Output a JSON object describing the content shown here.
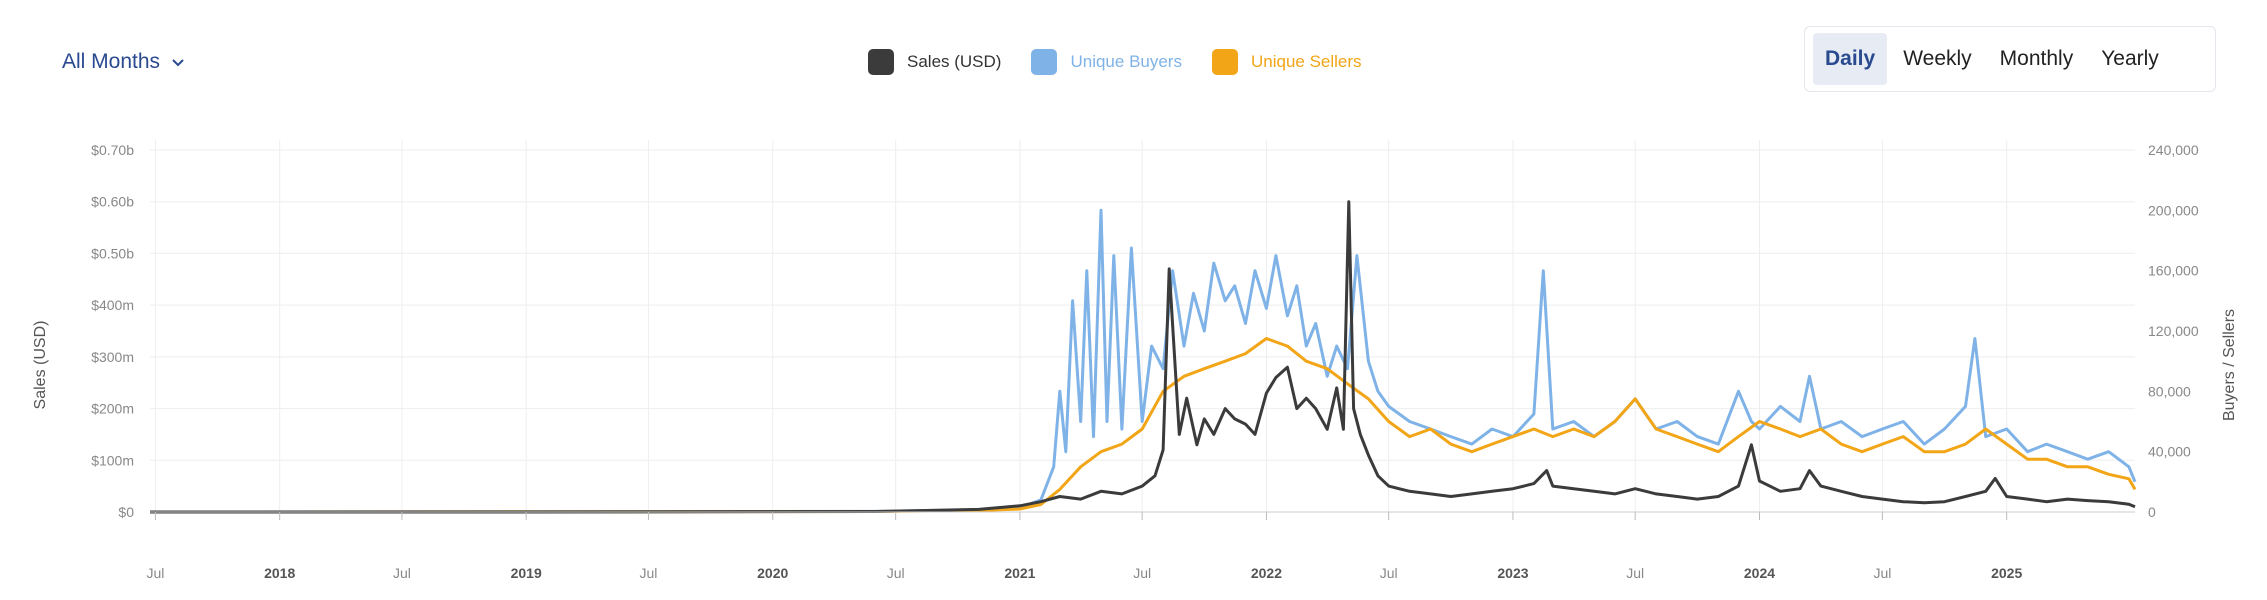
{
  "controls": {
    "months_label": "All Months",
    "periods": [
      {
        "label": "Daily",
        "active": true
      },
      {
        "label": "Weekly",
        "active": false
      },
      {
        "label": "Monthly",
        "active": false
      },
      {
        "label": "Yearly",
        "active": false
      }
    ]
  },
  "colors": {
    "sales": "#3b3b3b",
    "buyers": "#7fb3e8",
    "sellers": "#f2a516",
    "grid": "#eeeeee",
    "tick": "#888888"
  },
  "chart_data": {
    "type": "line",
    "legend_position": "top-center",
    "grid": true,
    "xlabel": "",
    "ylabel_left": "Sales (USD)",
    "ylabel_right": "Buyers / Sellers",
    "x_range": [
      "2017-06-23",
      "2025-07-10"
    ],
    "ylim_left": [
      0,
      700000000
    ],
    "ylim_right": [
      0,
      240000
    ],
    "left_ticks": [
      {
        "value": 0,
        "label": "$0"
      },
      {
        "value": 100000000,
        "label": "$100m"
      },
      {
        "value": 200000000,
        "label": "$200m"
      },
      {
        "value": 300000000,
        "label": "$300m"
      },
      {
        "value": 400000000,
        "label": "$400m"
      },
      {
        "value": 500000000,
        "label": "$0.50b"
      },
      {
        "value": 600000000,
        "label": "$0.60b"
      },
      {
        "value": 700000000,
        "label": "$0.70b"
      }
    ],
    "right_ticks": [
      {
        "value": 0,
        "label": "0"
      },
      {
        "value": 40000,
        "label": "40,000"
      },
      {
        "value": 80000,
        "label": "80,000"
      },
      {
        "value": 120000,
        "label": "120,000"
      },
      {
        "value": 160000,
        "label": "160,000"
      },
      {
        "value": 200000,
        "label": "200,000"
      },
      {
        "value": 240000,
        "label": "240,000"
      }
    ],
    "x_ticks": [
      {
        "date": "2017-07-01",
        "label": "Jul",
        "bold": false
      },
      {
        "date": "2018-01-01",
        "label": "2018",
        "bold": true
      },
      {
        "date": "2018-07-01",
        "label": "Jul",
        "bold": false
      },
      {
        "date": "2019-01-01",
        "label": "2019",
        "bold": true
      },
      {
        "date": "2019-07-01",
        "label": "Jul",
        "bold": false
      },
      {
        "date": "2020-01-01",
        "label": "2020",
        "bold": true
      },
      {
        "date": "2020-07-01",
        "label": "Jul",
        "bold": false
      },
      {
        "date": "2021-01-01",
        "label": "2021",
        "bold": true
      },
      {
        "date": "2021-07-01",
        "label": "Jul",
        "bold": false
      },
      {
        "date": "2022-01-01",
        "label": "2022",
        "bold": true
      },
      {
        "date": "2022-07-01",
        "label": "Jul",
        "bold": false
      },
      {
        "date": "2023-01-01",
        "label": "2023",
        "bold": true
      },
      {
        "date": "2023-07-01",
        "label": "Jul",
        "bold": false
      },
      {
        "date": "2024-01-01",
        "label": "2024",
        "bold": true
      },
      {
        "date": "2024-07-01",
        "label": "Jul",
        "bold": false
      },
      {
        "date": "2025-01-01",
        "label": "2025",
        "bold": true
      }
    ],
    "series": [
      {
        "name": "Unique Buyers",
        "key": "buyers",
        "axis": "right",
        "x": [
          "2017-06-23",
          "2019-01-01",
          "2020-06-01",
          "2020-11-01",
          "2021-01-01",
          "2021-02-01",
          "2021-02-20",
          "2021-03-01",
          "2021-03-10",
          "2021-03-20",
          "2021-04-01",
          "2021-04-10",
          "2021-04-20",
          "2021-05-01",
          "2021-05-10",
          "2021-05-20",
          "2021-06-01",
          "2021-06-15",
          "2021-07-01",
          "2021-07-15",
          "2021-08-01",
          "2021-08-15",
          "2021-09-01",
          "2021-09-15",
          "2021-10-01",
          "2021-10-15",
          "2021-11-01",
          "2021-11-15",
          "2021-12-01",
          "2021-12-15",
          "2022-01-01",
          "2022-01-15",
          "2022-02-01",
          "2022-02-15",
          "2022-03-01",
          "2022-03-15",
          "2022-04-01",
          "2022-04-15",
          "2022-05-01",
          "2022-05-15",
          "2022-06-01",
          "2022-06-15",
          "2022-07-01",
          "2022-08-01",
          "2022-09-01",
          "2022-10-01",
          "2022-11-01",
          "2022-12-01",
          "2023-01-01",
          "2023-02-01",
          "2023-02-15",
          "2023-03-01",
          "2023-04-01",
          "2023-05-01",
          "2023-06-01",
          "2023-07-01",
          "2023-08-01",
          "2023-09-01",
          "2023-10-01",
          "2023-11-01",
          "2023-12-01",
          "2023-12-20",
          "2024-01-01",
          "2024-02-01",
          "2024-03-01",
          "2024-03-15",
          "2024-04-01",
          "2024-05-01",
          "2024-06-01",
          "2024-07-01",
          "2024-08-01",
          "2024-09-01",
          "2024-10-01",
          "2024-11-01",
          "2024-11-15",
          "2024-12-01",
          "2025-01-01",
          "2025-02-01",
          "2025-03-01",
          "2025-04-01",
          "2025-05-01",
          "2025-06-01",
          "2025-07-01",
          "2025-07-10"
        ],
        "values": [
          0,
          100,
          400,
          1500,
          3000,
          8000,
          30000,
          80000,
          40000,
          140000,
          60000,
          160000,
          50000,
          200000,
          60000,
          170000,
          55000,
          175000,
          60000,
          110000,
          95000,
          160000,
          110000,
          145000,
          120000,
          165000,
          140000,
          150000,
          125000,
          160000,
          135000,
          170000,
          130000,
          150000,
          110000,
          125000,
          90000,
          110000,
          95000,
          170000,
          100000,
          80000,
          70000,
          60000,
          55000,
          50000,
          45000,
          55000,
          50000,
          65000,
          160000,
          55000,
          60000,
          50000,
          60000,
          75000,
          55000,
          60000,
          50000,
          45000,
          80000,
          60000,
          55000,
          70000,
          60000,
          90000,
          55000,
          60000,
          50000,
          55000,
          60000,
          45000,
          55000,
          70000,
          115000,
          50000,
          55000,
          40000,
          45000,
          40000,
          35000,
          40000,
          30000,
          20000
        ]
      },
      {
        "name": "Unique Sellers",
        "key": "sellers",
        "axis": "right",
        "x": [
          "2017-06-23",
          "2019-01-01",
          "2020-06-01",
          "2020-11-01",
          "2021-01-01",
          "2021-02-01",
          "2021-03-01",
          "2021-04-01",
          "2021-05-01",
          "2021-06-01",
          "2021-07-01",
          "2021-08-01",
          "2021-09-01",
          "2021-10-01",
          "2021-11-01",
          "2021-12-01",
          "2022-01-01",
          "2022-02-01",
          "2022-03-01",
          "2022-04-01",
          "2022-05-01",
          "2022-06-01",
          "2022-07-01",
          "2022-08-01",
          "2022-09-01",
          "2022-10-01",
          "2022-11-01",
          "2022-12-01",
          "2023-01-01",
          "2023-02-01",
          "2023-03-01",
          "2023-04-01",
          "2023-05-01",
          "2023-06-01",
          "2023-07-01",
          "2023-08-01",
          "2023-09-01",
          "2023-10-01",
          "2023-11-01",
          "2023-12-01",
          "2024-01-01",
          "2024-02-01",
          "2024-03-01",
          "2024-04-01",
          "2024-05-01",
          "2024-06-01",
          "2024-07-01",
          "2024-08-01",
          "2024-09-01",
          "2024-10-01",
          "2024-11-01",
          "2024-12-01",
          "2025-01-01",
          "2025-02-01",
          "2025-03-01",
          "2025-04-01",
          "2025-05-01",
          "2025-06-01",
          "2025-07-01",
          "2025-07-10"
        ],
        "values": [
          0,
          100,
          300,
          1000,
          2000,
          5000,
          15000,
          30000,
          40000,
          45000,
          55000,
          80000,
          90000,
          95000,
          100000,
          105000,
          115000,
          110000,
          100000,
          95000,
          85000,
          75000,
          60000,
          50000,
          55000,
          45000,
          40000,
          45000,
          50000,
          55000,
          50000,
          55000,
          50000,
          60000,
          75000,
          55000,
          50000,
          45000,
          40000,
          50000,
          60000,
          55000,
          50000,
          55000,
          45000,
          40000,
          45000,
          50000,
          40000,
          40000,
          45000,
          55000,
          45000,
          35000,
          35000,
          30000,
          30000,
          25000,
          22000,
          15000
        ]
      },
      {
        "name": "Sales (USD)",
        "key": "sales",
        "axis": "left",
        "x": [
          "2017-06-23",
          "2019-01-01",
          "2020-06-01",
          "2020-11-01",
          "2021-01-01",
          "2021-02-01",
          "2021-03-01",
          "2021-04-01",
          "2021-05-01",
          "2021-06-01",
          "2021-07-01",
          "2021-07-20",
          "2021-08-01",
          "2021-08-10",
          "2021-08-25",
          "2021-09-05",
          "2021-09-20",
          "2021-10-01",
          "2021-10-15",
          "2021-11-01",
          "2021-11-15",
          "2021-12-01",
          "2021-12-15",
          "2022-01-01",
          "2022-01-15",
          "2022-02-01",
          "2022-02-15",
          "2022-03-01",
          "2022-03-15",
          "2022-04-01",
          "2022-04-15",
          "2022-04-25",
          "2022-05-03",
          "2022-05-10",
          "2022-05-20",
          "2022-06-01",
          "2022-06-15",
          "2022-07-01",
          "2022-08-01",
          "2022-09-01",
          "2022-10-01",
          "2022-11-01",
          "2022-12-01",
          "2023-01-01",
          "2023-02-01",
          "2023-02-20",
          "2023-03-01",
          "2023-04-01",
          "2023-05-01",
          "2023-06-01",
          "2023-07-01",
          "2023-08-01",
          "2023-09-01",
          "2023-10-01",
          "2023-11-01",
          "2023-12-01",
          "2023-12-20",
          "2024-01-01",
          "2024-02-01",
          "2024-03-01",
          "2024-03-15",
          "2024-04-01",
          "2024-05-01",
          "2024-06-01",
          "2024-07-01",
          "2024-08-01",
          "2024-09-01",
          "2024-10-01",
          "2024-11-01",
          "2024-12-01",
          "2024-12-15",
          "2025-01-01",
          "2025-02-01",
          "2025-03-01",
          "2025-04-01",
          "2025-05-01",
          "2025-06-01",
          "2025-07-01",
          "2025-07-10"
        ],
        "values": [
          0,
          0,
          1000000,
          5000000,
          12000000,
          20000000,
          30000000,
          25000000,
          40000000,
          35000000,
          50000000,
          70000000,
          120000000,
          470000000,
          150000000,
          220000000,
          130000000,
          180000000,
          150000000,
          200000000,
          180000000,
          170000000,
          150000000,
          230000000,
          260000000,
          280000000,
          200000000,
          220000000,
          200000000,
          160000000,
          240000000,
          160000000,
          600000000,
          200000000,
          150000000,
          110000000,
          70000000,
          50000000,
          40000000,
          35000000,
          30000000,
          35000000,
          40000000,
          45000000,
          55000000,
          80000000,
          50000000,
          45000000,
          40000000,
          35000000,
          45000000,
          35000000,
          30000000,
          25000000,
          30000000,
          50000000,
          130000000,
          60000000,
          40000000,
          45000000,
          80000000,
          50000000,
          40000000,
          30000000,
          25000000,
          20000000,
          18000000,
          20000000,
          30000000,
          40000000,
          65000000,
          30000000,
          25000000,
          20000000,
          25000000,
          22000000,
          20000000,
          15000000,
          10000000
        ]
      }
    ]
  }
}
